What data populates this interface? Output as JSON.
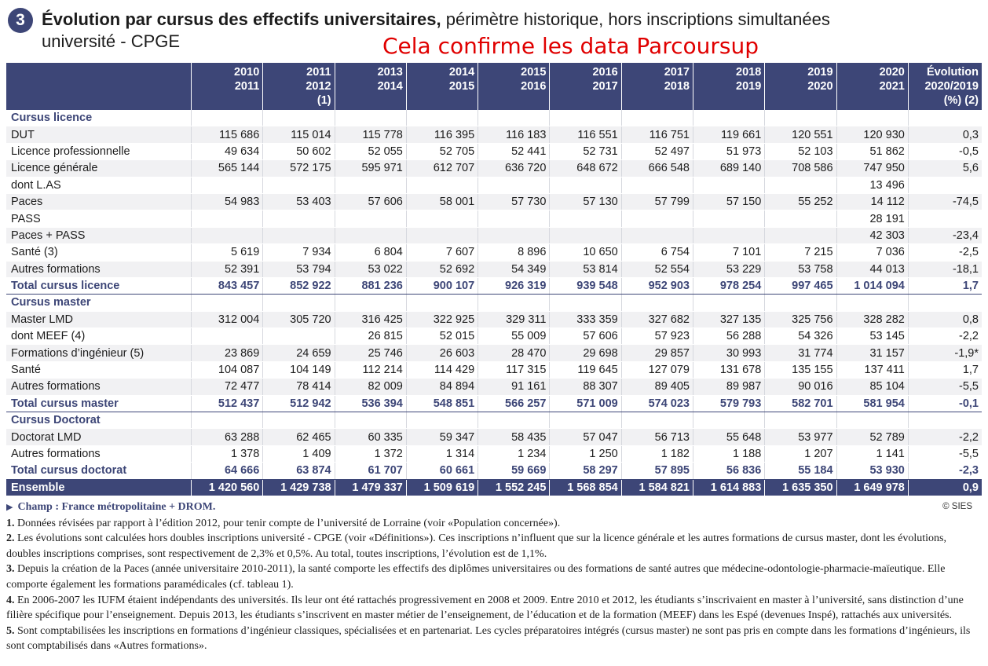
{
  "title": {
    "number": "3",
    "bold": "Évolution par cursus des effectifs universitaires,",
    "rest": " périmètre historique, hors inscriptions simultanées",
    "line2": "université - CPGE"
  },
  "annotation": "Cela confirme les data Parcoursup",
  "table": {
    "headers": [
      {
        "l1": "2010",
        "l2": "2011",
        "l3": ""
      },
      {
        "l1": "2011",
        "l2": "2012",
        "l3": "(1)"
      },
      {
        "l1": "2013",
        "l2": "2014",
        "l3": ""
      },
      {
        "l1": "2014",
        "l2": "2015",
        "l3": ""
      },
      {
        "l1": "2015",
        "l2": "2016",
        "l3": ""
      },
      {
        "l1": "2016",
        "l2": "2017",
        "l3": ""
      },
      {
        "l1": "2017",
        "l2": "2018",
        "l3": ""
      },
      {
        "l1": "2018",
        "l2": "2019",
        "l3": ""
      },
      {
        "l1": "2019",
        "l2": "2020",
        "l3": ""
      },
      {
        "l1": "2020",
        "l2": "2021",
        "l3": ""
      },
      {
        "l1": "Évolution",
        "l2": "2020/2019",
        "l3": "(%) (2)"
      }
    ],
    "rows": [
      {
        "type": "section",
        "label": "Cursus licence",
        "cells": [
          "",
          "",
          "",
          "",
          "",
          "",
          "",
          "",
          "",
          "",
          ""
        ]
      },
      {
        "type": "data",
        "label": "DUT",
        "cells": [
          "115 686",
          "115 014",
          "115 778",
          "116 395",
          "116 183",
          "116 551",
          "116 751",
          "119 661",
          "120 551",
          "120 930",
          "0,3"
        ]
      },
      {
        "type": "data alt",
        "label": "Licence professionnelle",
        "cells": [
          "49 634",
          "50 602",
          "52 055",
          "52 705",
          "52 441",
          "52 731",
          "52 497",
          "51 973",
          "52 103",
          "51 862",
          "-0,5"
        ]
      },
      {
        "type": "data",
        "label": "Licence générale",
        "cells": [
          "565 144",
          "572 175",
          "595 971",
          "612 707",
          "636 720",
          "648 672",
          "666 548",
          "689 140",
          "708 586",
          "747 950",
          "5,6"
        ]
      },
      {
        "type": "data alt",
        "label": "dont L.AS",
        "cells": [
          "",
          "",
          "",
          "",
          "",
          "",
          "",
          "",
          "",
          "13 496",
          ""
        ]
      },
      {
        "type": "data",
        "label": "Paces",
        "cells": [
          "54 983",
          "53 403",
          "57 606",
          "58 001",
          "57 730",
          "57 130",
          "57 799",
          "57 150",
          "55 252",
          "14 112",
          "-74,5"
        ]
      },
      {
        "type": "data alt",
        "label": "PASS",
        "cells": [
          "",
          "",
          "",
          "",
          "",
          "",
          "",
          "",
          "",
          "28 191",
          ""
        ]
      },
      {
        "type": "data",
        "label": "Paces + PASS",
        "cells": [
          "",
          "",
          "",
          "",
          "",
          "",
          "",
          "",
          "",
          "42 303",
          "-23,4"
        ]
      },
      {
        "type": "data alt",
        "label": "Santé (3)",
        "cells": [
          "5 619",
          "7 934",
          "6 804",
          "7 607",
          "8 896",
          "10 650",
          "6 754",
          "7 101",
          "7 215",
          "7 036",
          "-2,5"
        ]
      },
      {
        "type": "data",
        "label": "Autres formations",
        "cells": [
          "52 391",
          "53 794",
          "53 022",
          "52 692",
          "54 349",
          "53 814",
          "52 554",
          "53 229",
          "53 758",
          "44 013",
          "-18,1"
        ]
      },
      {
        "type": "total",
        "label": "Total cursus licence",
        "cells": [
          "843 457",
          "852 922",
          "881 236",
          "900 107",
          "926 319",
          "939 548",
          "952 903",
          "978 254",
          "997 465",
          "1 014 094",
          "1,7"
        ]
      },
      {
        "type": "section",
        "label": "Cursus master",
        "cells": [
          "",
          "",
          "",
          "",
          "",
          "",
          "",
          "",
          "",
          "",
          ""
        ]
      },
      {
        "type": "data",
        "label": "Master LMD",
        "cells": [
          "312 004",
          "305 720",
          "316 425",
          "322 925",
          "329 311",
          "333 359",
          "327 682",
          "327 135",
          "325 756",
          "328 282",
          "0,8"
        ]
      },
      {
        "type": "data alt",
        "label": "dont MEEF (4)",
        "cells": [
          "",
          "",
          "26 815",
          "52 015",
          "55 009",
          "57 606",
          "57 923",
          "56 288",
          "54 326",
          "53 145",
          "-2,2"
        ]
      },
      {
        "type": "data",
        "label": "Formations d’ingénieur (5)",
        "cells": [
          "23 869",
          "24 659",
          "25 746",
          "26 603",
          "28 470",
          "29 698",
          "29 857",
          "30 993",
          "31 774",
          "31 157",
          "-1,9*"
        ]
      },
      {
        "type": "data alt",
        "label": "Santé",
        "cells": [
          "104 087",
          "104 149",
          "112 214",
          "114 429",
          "117 315",
          "119 645",
          "127 079",
          "131 678",
          "135 155",
          "137 411",
          "1,7"
        ]
      },
      {
        "type": "data",
        "label": "Autres formations",
        "cells": [
          "72 477",
          "78 414",
          "82 009",
          "84 894",
          "91 161",
          "88 307",
          "89 405",
          "89 987",
          "90 016",
          "85 104",
          "-5,5"
        ]
      },
      {
        "type": "total",
        "label": "Total cursus master",
        "cells": [
          "512 437",
          "512 942",
          "536 394",
          "548 851",
          "566 257",
          "571 009",
          "574 023",
          "579 793",
          "582 701",
          "581 954",
          "-0,1"
        ]
      },
      {
        "type": "section",
        "label": "Cursus Doctorat",
        "cells": [
          "",
          "",
          "",
          "",
          "",
          "",
          "",
          "",
          "",
          "",
          ""
        ]
      },
      {
        "type": "data",
        "label": "Doctorat LMD",
        "cells": [
          "63 288",
          "62 465",
          "60 335",
          "59 347",
          "58 435",
          "57 047",
          "56 713",
          "55 648",
          "53 977",
          "52 789",
          "-2,2"
        ]
      },
      {
        "type": "data alt",
        "label": "Autres formations",
        "cells": [
          "1 378",
          "1 409",
          "1 372",
          "1 314",
          "1 234",
          "1 250",
          "1 182",
          "1 188",
          "1 207",
          "1 141",
          "-5,5"
        ]
      },
      {
        "type": "total",
        "label": "Total cursus doctorat",
        "cells": [
          "64 666",
          "63 874",
          "61 707",
          "60 661",
          "59 669",
          "58 297",
          "57 895",
          "56 836",
          "55 184",
          "53 930",
          "-2,3"
        ]
      },
      {
        "type": "ensemble",
        "label": "Ensemble",
        "cells": [
          "1 420 560",
          "1 429 738",
          "1 479 337",
          "1 509 619",
          "1 552 245",
          "1 568 854",
          "1 584 821",
          "1 614 883",
          "1 635 350",
          "1 649 978",
          "0,9"
        ]
      }
    ]
  },
  "footer": {
    "champ": "Champ : France métropolitaine + DROM.",
    "copyright": "© SIES",
    "notes": [
      {
        "num": "1.",
        "text": "Données révisées par rapport à l’édition 2012, pour tenir compte de l’université de Lorraine (voir «Population concernée»)."
      },
      {
        "num": "2.",
        "text": "Les évolutions sont calculées hors doubles inscriptions université - CPGE (voir «Définitions»). Ces inscriptions n’influent que sur la licence générale et les autres formations de cursus master, dont les évolutions, doubles inscriptions comprises, sont respectivement de 2,3% et 0,5%. Au total, toutes inscriptions, l’évolution est de 1,1%."
      },
      {
        "num": "3.",
        "text": "Depuis la création de la Paces (année universitaire 2010-2011), la santé comporte les effectifs des diplômes universitaires ou des formations de santé autres que médecine-odontologie-pharmacie-maïeutique. Elle comporte également les formations paramédicales (cf. tableau 1)."
      },
      {
        "num": "4.",
        "text": "En 2006-2007 les IUFM étaient indépendants des universités. Ils leur ont été rattachés progressivement en 2008 et 2009. Entre 2010 et 2012, les étudiants s’inscrivaient en master à l’université, sans distinction d’une filière spécifique pour l’enseignement. Depuis 2013, les étudiants s’inscrivent en master métier de l’enseignement, de l’éducation et de la formation (MEEF) dans les Espé (devenues Inspé), rattachés aux universités."
      },
      {
        "num": "5.",
        "text": "Sont comptabilisées les inscriptions en formations d’ingénieur classiques, spécialisées et en partenariat. Les cycles préparatoires intégrés (cursus master) ne sont pas pris en compte dans les formations d’ingénieurs, ils sont comptabilisés dans «Autres formations»."
      }
    ]
  }
}
